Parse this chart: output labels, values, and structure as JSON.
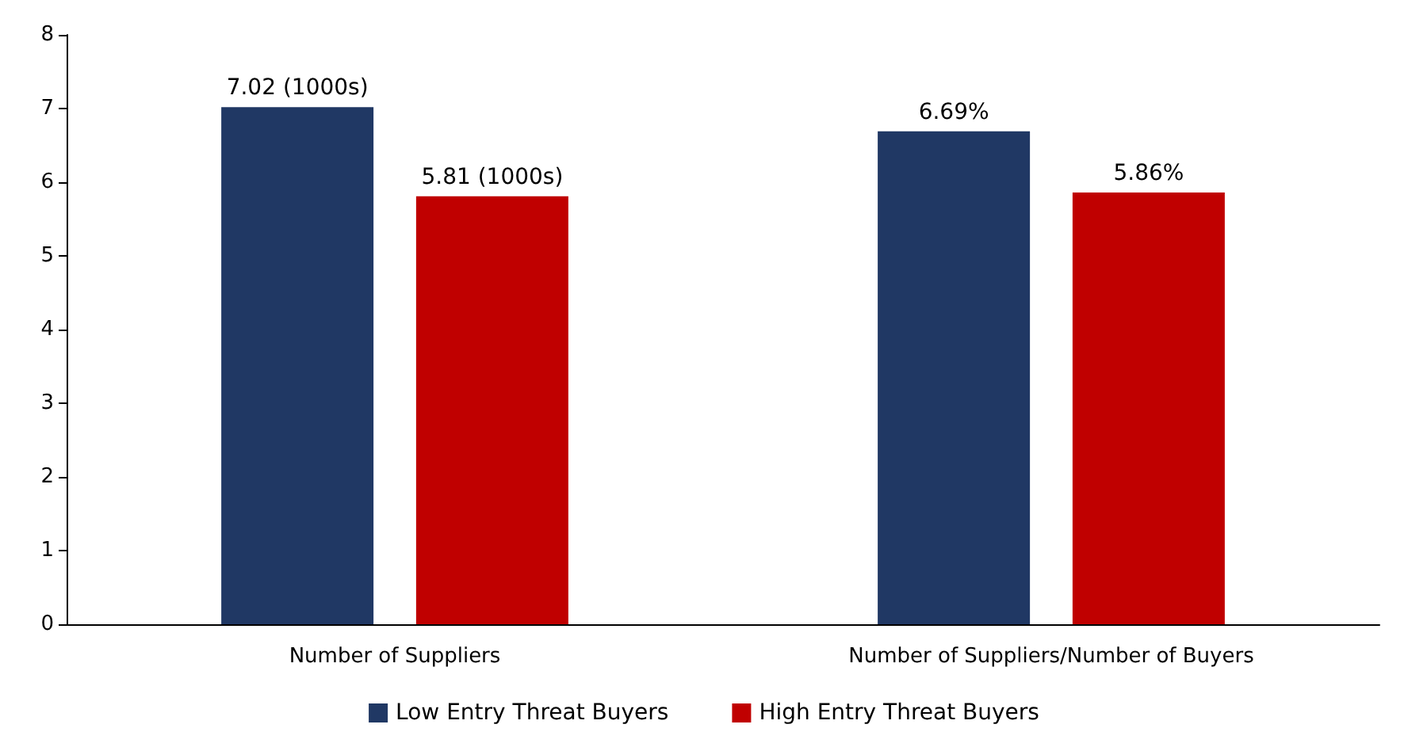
{
  "chart_data": {
    "type": "bar",
    "categories": [
      "Number of Suppliers",
      "Number of Suppliers/Number of Buyers"
    ],
    "series": [
      {
        "name": "Low Entry Threat Buyers",
        "color": "#203864",
        "values": [
          7.02,
          6.69
        ],
        "value_labels": [
          "7.02 (1000s)",
          "6.69%"
        ]
      },
      {
        "name": "High Entry Threat Buyers",
        "color": "#c00000",
        "values": [
          5.81,
          5.86
        ],
        "value_labels": [
          "5.81 (1000s)",
          "5.86%"
        ]
      }
    ],
    "ylim": [
      0,
      8
    ],
    "yticks": [
      0,
      1,
      2,
      3,
      4,
      5,
      6,
      7,
      8
    ],
    "grid": false,
    "legend": "bottom"
  }
}
